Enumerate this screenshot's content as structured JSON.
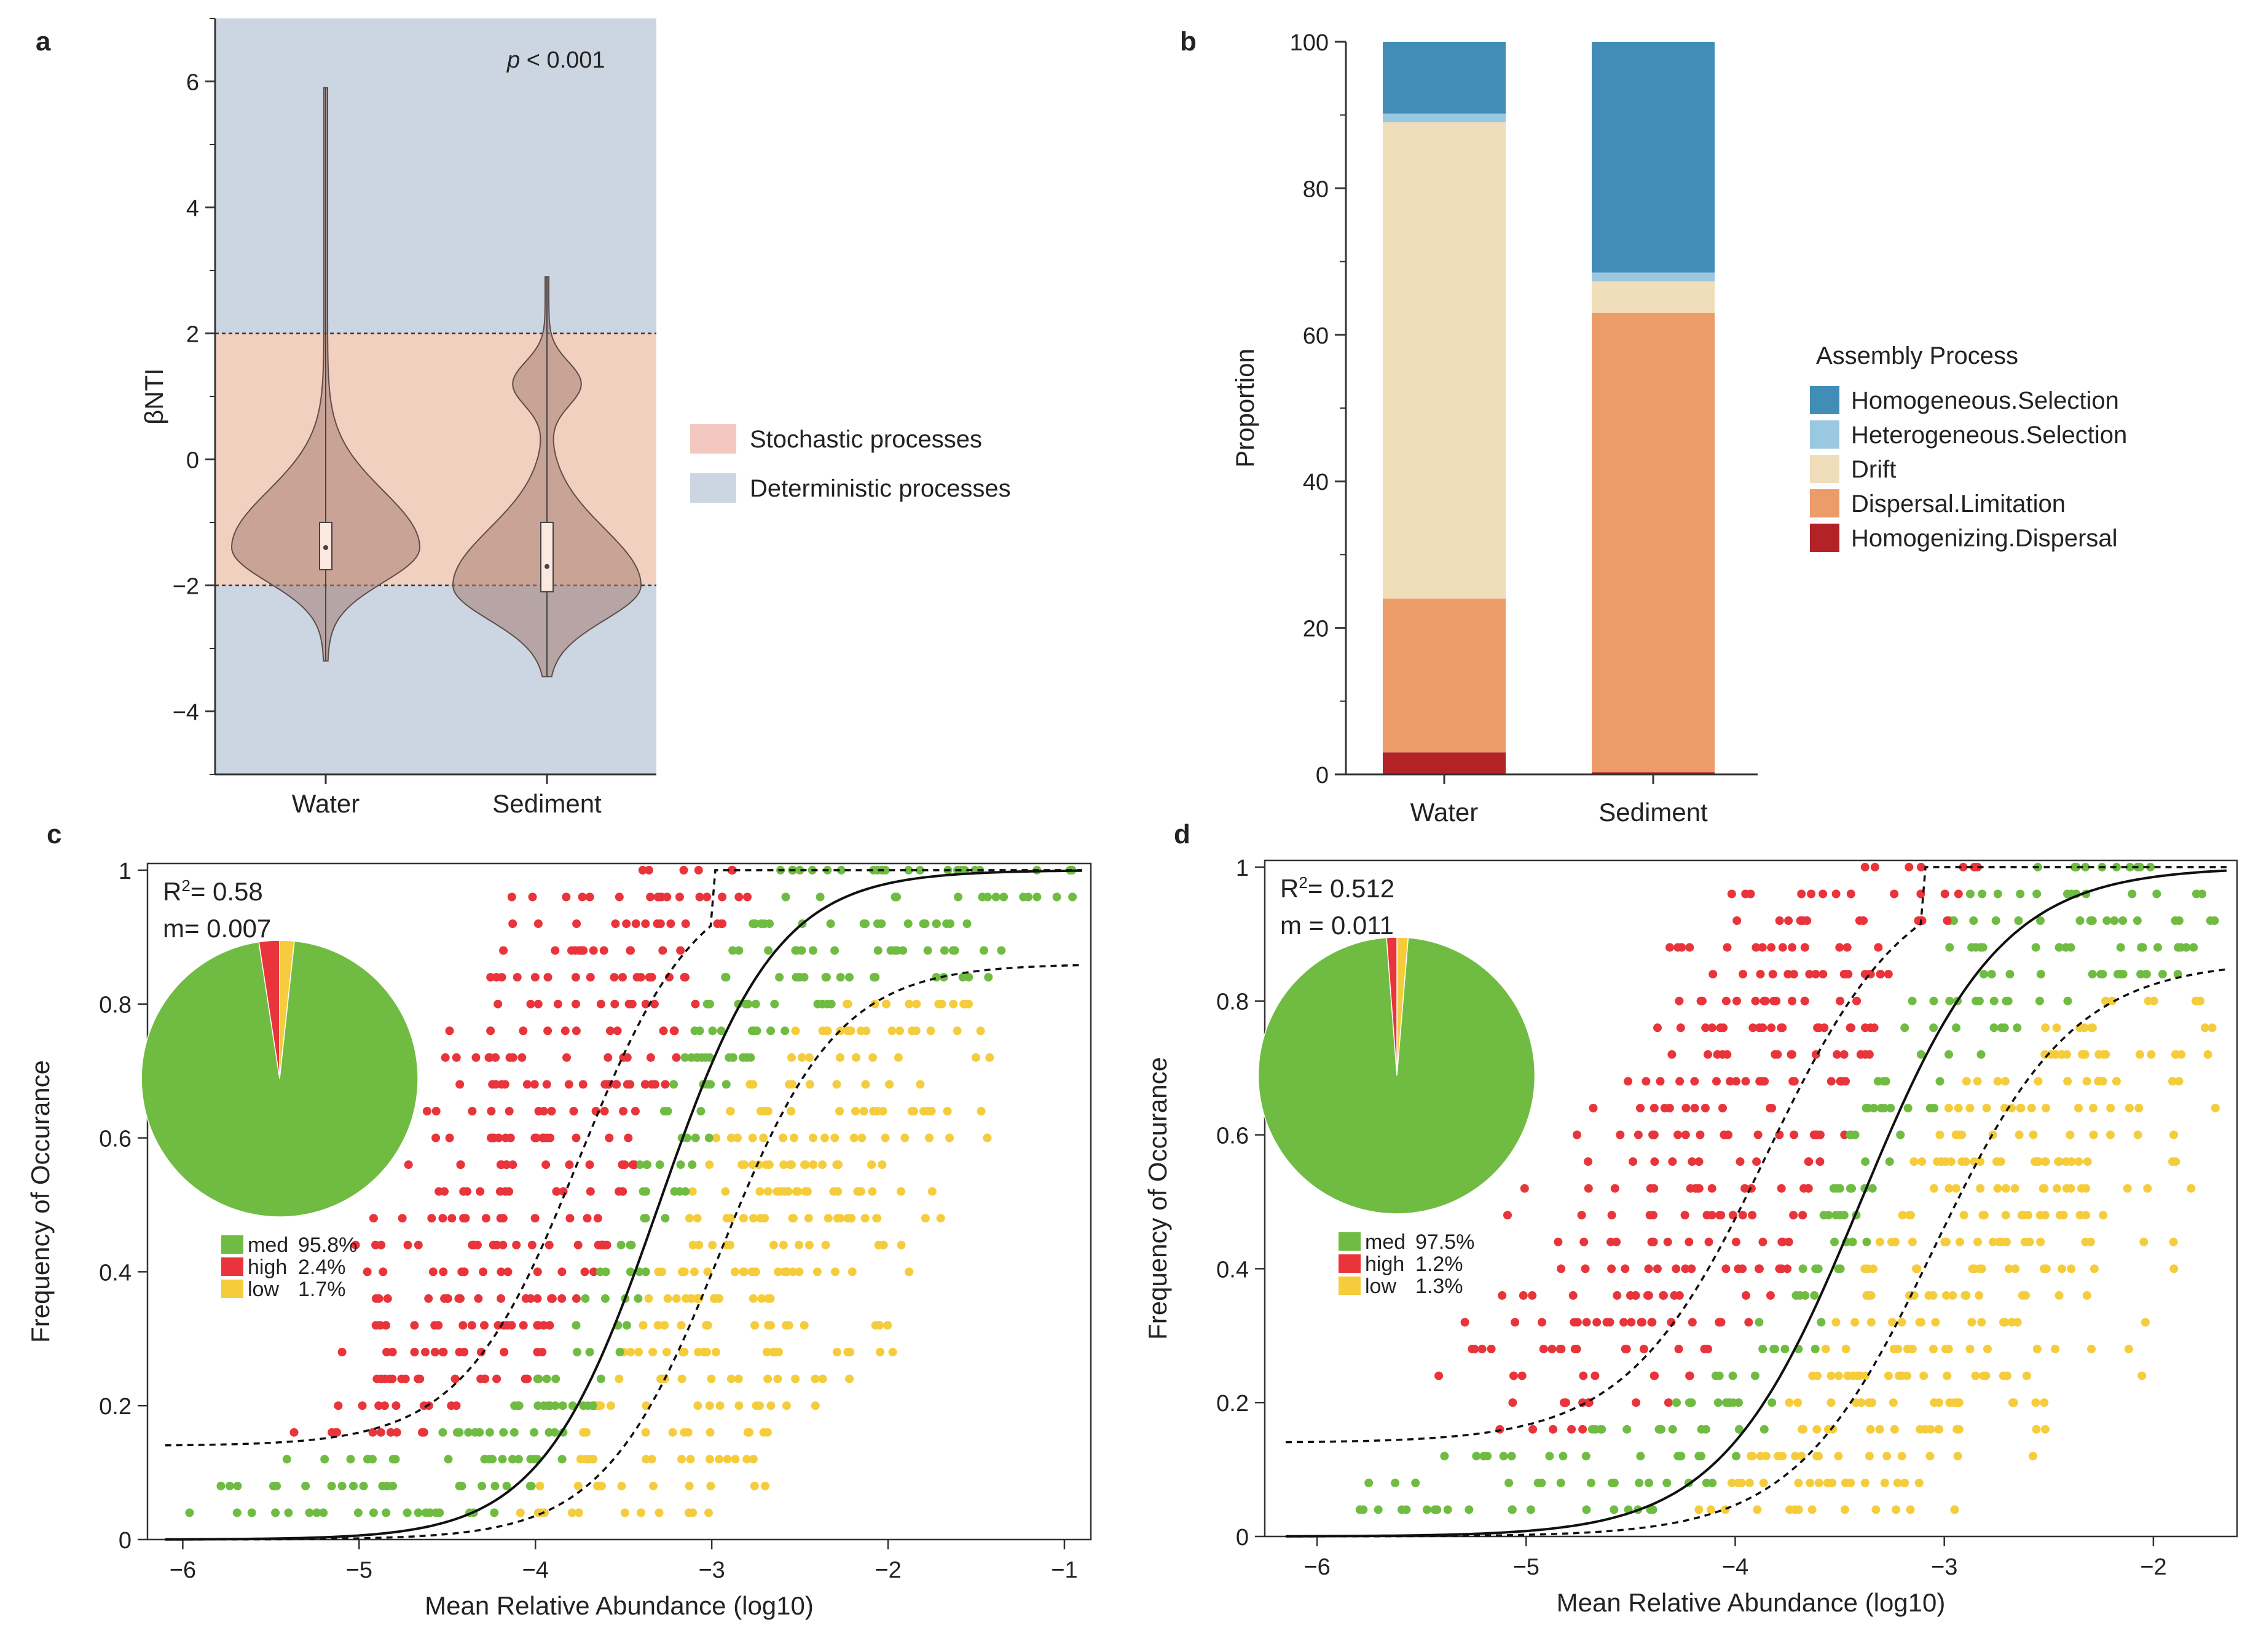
{
  "colors": {
    "stochastic": "#f2d0bf",
    "deterministic": "#ccd5e2",
    "violin": "#a57d74",
    "homogeneous_selection": "#418db8",
    "heterogeneous_selection": "#9bc8e1",
    "drift": "#f0ddb9",
    "dispersal_limitation": "#eb9c68",
    "homogenizing_dispersal": "#b32227",
    "med": "#70bc43",
    "high": "#e8343a",
    "low": "#f5cc3c"
  },
  "chart_data": [
    {
      "panel": "a",
      "type": "violin",
      "ylabel": "βNTI",
      "ylim": [
        -5,
        7
      ],
      "yticks": [
        "6",
        "4",
        "2",
        "0",
        "−2",
        "−4"
      ],
      "ytick_values": [
        6,
        4,
        2,
        0,
        -2,
        -4
      ],
      "categories": [
        "Water",
        "Sediment"
      ],
      "annotation": {
        "p": "p",
        "rest": " < 0.001"
      },
      "thresholds": [
        2,
        -2
      ],
      "groups": [
        {
          "name": "Water",
          "min": -3.2,
          "max": 5.9,
          "q1": -1.75,
          "median": -1.4,
          "q3": -1.0,
          "mode": -1.4
        },
        {
          "name": "Sediment",
          "min": -3.45,
          "max": 2.9,
          "q1": -2.1,
          "median": -1.7,
          "q3": -1.0,
          "mode": -2.0
        }
      ],
      "legend": [
        {
          "label": "Stochastic processes",
          "color": "#f2c8c0"
        },
        {
          "label": "Deterministic processes",
          "color": "#ccd5e2"
        }
      ]
    },
    {
      "panel": "b",
      "type": "stacked_bar",
      "ylabel": "Proportion",
      "ylim": [
        0,
        100
      ],
      "yticks": [
        "100",
        "80",
        "60",
        "40",
        "20",
        "0"
      ],
      "ytick_values": [
        100,
        80,
        60,
        40,
        20,
        0
      ],
      "categories": [
        "Water",
        "Sediment"
      ],
      "legend_title": "Assembly Process",
      "series": [
        {
          "name": "Homogenizing.Dispersal",
          "values": [
            3,
            0.3
          ]
        },
        {
          "name": "Dispersal.Limitation",
          "values": [
            21,
            62.7
          ]
        },
        {
          "name": "Drift",
          "values": [
            65,
            4.3
          ]
        },
        {
          "name": "Heterogeneous.Selection",
          "values": [
            1.2,
            1.2
          ]
        },
        {
          "name": "Homogeneous.Selection",
          "values": [
            9.8,
            31.5
          ]
        }
      ],
      "legend": [
        "Homogeneous.Selection",
        "Heterogeneous.Selection",
        "Drift",
        "Dispersal.Limitation",
        "Homogenizing.Dispersal"
      ]
    },
    {
      "panel": "c",
      "type": "scatter",
      "xlabel": "Mean Relative Abundance (log10)",
      "ylabel": "Frequency of Occurance",
      "xlim": [
        -6.2,
        -0.85
      ],
      "ylim": [
        0,
        1.01
      ],
      "xticks": [
        "−6",
        "−5",
        "−4",
        "−3",
        "−2",
        "−1"
      ],
      "xtick_values": [
        -6,
        -5,
        -4,
        -3,
        -2,
        -1
      ],
      "yticks": [
        "1",
        "0.8",
        "0.6",
        "0.4",
        "0.2",
        "0"
      ],
      "ytick_values": [
        1,
        0.8,
        0.6,
        0.4,
        0.2,
        0
      ],
      "r2_label": "R",
      "r2_value": "= 0.58",
      "m_label": "m= 0.007",
      "model": {
        "center": -3.3,
        "slope": 3.0,
        "asymptote": 0.86,
        "lower_offset": 0.14
      },
      "pie": [
        {
          "name": "med",
          "value": 95.8,
          "label": "med",
          "pct": "95.8%"
        },
        {
          "name": "high",
          "value": 2.4,
          "label": "high",
          "pct": "2.4%"
        },
        {
          "name": "low",
          "value": 1.7,
          "label": "low",
          "pct": "1.7%"
        }
      ]
    },
    {
      "panel": "d",
      "type": "scatter",
      "xlabel": "Mean Relative Abundance (log10)",
      "ylabel": "Frequency of Occurance",
      "xlim": [
        -6.25,
        -1.6
      ],
      "ylim": [
        0,
        1.01
      ],
      "xticks": [
        "−6",
        "−5",
        "−4",
        "−3",
        "−2"
      ],
      "xtick_values": [
        -6,
        -5,
        -4,
        -3,
        -2
      ],
      "yticks": [
        "1",
        "0.8",
        "0.6",
        "0.4",
        "0.2",
        "0"
      ],
      "ytick_values": [
        1,
        0.8,
        0.6,
        0.4,
        0.2,
        0
      ],
      "r2_label": "R",
      "r2_value": "= 0.512",
      "m_label": "m = 0.011",
      "model": {
        "center": -3.4,
        "slope": 3.0,
        "asymptote": 0.86,
        "lower_offset": 0.14
      },
      "pie": [
        {
          "name": "med",
          "value": 97.5,
          "label": "med",
          "pct": "97.5%"
        },
        {
          "name": "high",
          "value": 1.2,
          "label": "high",
          "pct": "1.2%"
        },
        {
          "name": "low",
          "value": 1.3,
          "label": "low",
          "pct": "1.3%"
        }
      ]
    }
  ],
  "panel_labels": {
    "a": "a",
    "b": "b",
    "c": "c",
    "d": "d"
  }
}
